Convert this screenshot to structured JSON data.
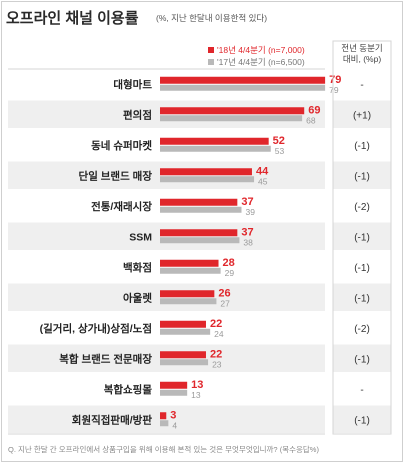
{
  "title": "오프라인 채널 이용률",
  "subtitle": "(%, 지난 한달내 이용한적 있다)",
  "legend": [
    {
      "name": "'18년 4/4분기 (n=7,000)",
      "color": "#e0262b"
    },
    {
      "name": "'17년 4/4분기 (n=6,500)",
      "color": "#b9b9b9"
    }
  ],
  "change_header": [
    "전년 동분기",
    "대비, (%p)"
  ],
  "note": "Q. 지난 한달 간 오프라인에서 상품구입을 위해 이용해 본적 있는 것은 무엇무엇입니까? (복수응답%)",
  "colors": {
    "current": "#e0262b",
    "previous": "#b9b9b9",
    "row_bg": "#efefef"
  },
  "chart_data": {
    "type": "bar",
    "orientation": "horizontal",
    "categories": [
      "대형마트",
      "편의점",
      "동네 슈퍼마켓",
      "단일 브랜드 매장",
      "전통/재래시장",
      "SSM",
      "백화점",
      "아울렛",
      "(길거리, 상가내)상점/노점",
      "복합 브랜드 전문매장",
      "복합쇼핑몰",
      "회원직접판매/방판"
    ],
    "series": [
      {
        "name": "'18년 4/4분기 (n=7,000)",
        "values": [
          79,
          69,
          52,
          44,
          37,
          37,
          28,
          26,
          22,
          22,
          13,
          3
        ]
      },
      {
        "name": "'17년 4/4분기 (n=6,500)",
        "values": [
          79,
          68,
          53,
          45,
          39,
          38,
          29,
          27,
          24,
          23,
          13,
          4
        ]
      }
    ],
    "change": [
      "-",
      "(+1)",
      "(-1)",
      "(-1)",
      "(-2)",
      "(-1)",
      "(-1)",
      "(-1)",
      "(-2)",
      "(-1)",
      "-",
      "(-1)"
    ],
    "xlim": [
      0,
      100
    ]
  }
}
